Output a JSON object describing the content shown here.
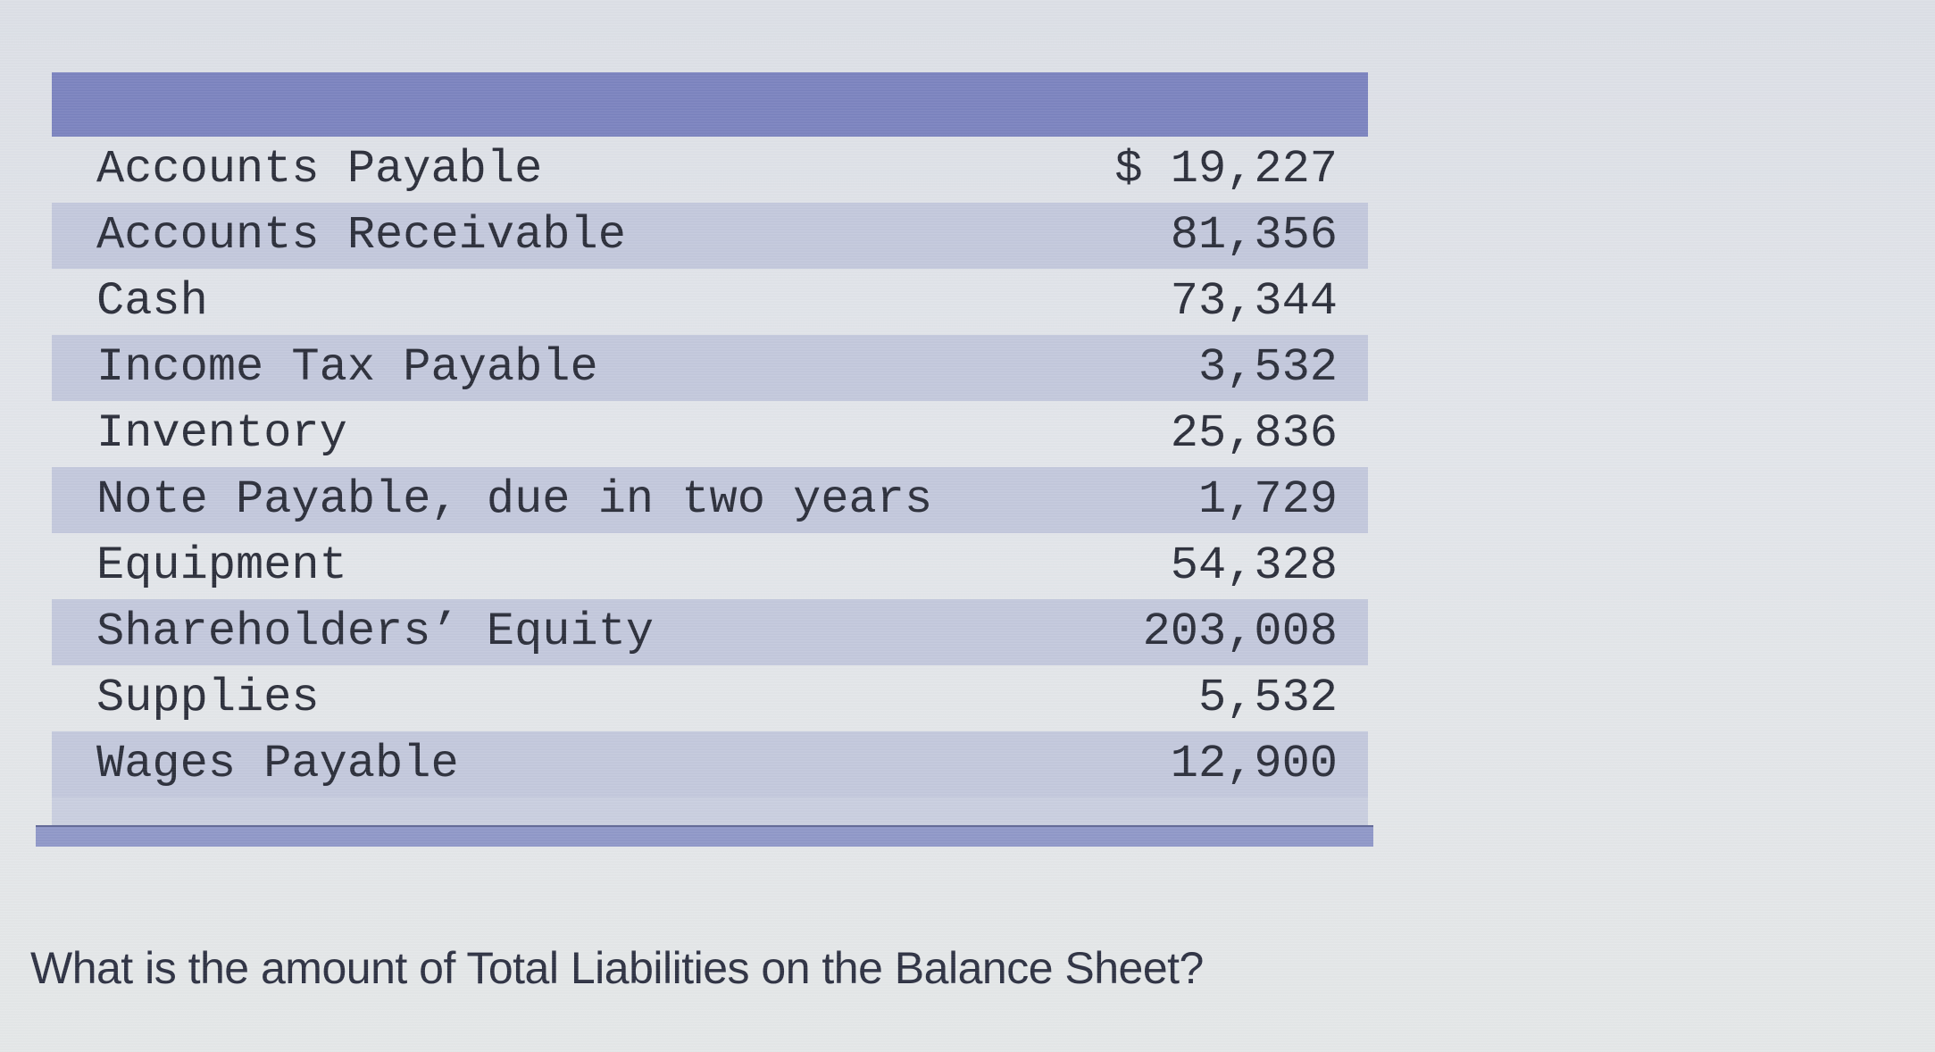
{
  "table": {
    "header": "",
    "rows": [
      {
        "label": "Accounts Payable",
        "value": "$ 19,227",
        "shaded": false
      },
      {
        "label": "Accounts Receivable",
        "value": "81,356",
        "shaded": true
      },
      {
        "label": "Cash",
        "value": "73,344",
        "shaded": false
      },
      {
        "label": "Income Tax Payable",
        "value": "3,532",
        "shaded": true
      },
      {
        "label": "Inventory",
        "value": "25,836",
        "shaded": false
      },
      {
        "label": "Note Payable, due in two years",
        "value": "1,729",
        "shaded": true
      },
      {
        "label": "Equipment",
        "value": "54,328",
        "shaded": false
      },
      {
        "label": "Shareholders’ Equity",
        "value": "203,008",
        "shaded": true
      },
      {
        "label": "Supplies",
        "value": "5,532",
        "shaded": false
      },
      {
        "label": "Wages Payable",
        "value": "12,900",
        "shaded": true
      }
    ]
  },
  "question": "What is the amount of Total Liabilities on the Balance Sheet?",
  "colors": {
    "header_bar": "#7b83bf",
    "row_shade": "#c3c8dc",
    "footer_bar": "#8f98c8",
    "text": "#2b2e3a"
  }
}
